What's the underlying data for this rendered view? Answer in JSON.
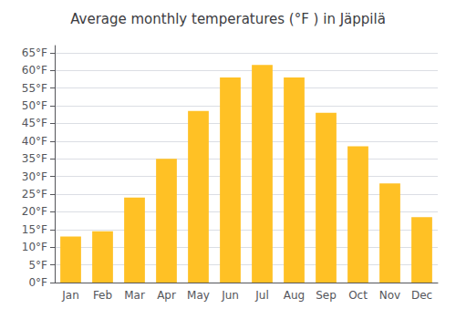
{
  "chart_data": {
    "type": "bar",
    "title": "Average monthly temperatures (°F ) in Jäppilä",
    "categories": [
      "Jan",
      "Feb",
      "Mar",
      "Apr",
      "May",
      "Jun",
      "Jul",
      "Aug",
      "Sep",
      "Oct",
      "Nov",
      "Dec"
    ],
    "values": [
      13,
      14.5,
      24,
      35,
      48.5,
      58,
      61.5,
      58,
      48,
      38.5,
      28,
      18.5
    ],
    "color": "#FFC125",
    "ylim": [
      0,
      67
    ],
    "yticks": [
      {
        "value": 0,
        "label": "0°F"
      },
      {
        "value": 5,
        "label": "5°F"
      },
      {
        "value": 10,
        "label": "10°F"
      },
      {
        "value": 15,
        "label": "15°F"
      },
      {
        "value": 20,
        "label": "20°F"
      },
      {
        "value": 25,
        "label": "25°F"
      },
      {
        "value": 30,
        "label": "30°F"
      },
      {
        "value": 35,
        "label": "35°F"
      },
      {
        "value": 40,
        "label": "40°F"
      },
      {
        "value": 45,
        "label": "45°F"
      },
      {
        "value": 50,
        "label": "50°F"
      },
      {
        "value": 55,
        "label": "55°F"
      },
      {
        "value": 60,
        "label": "60°F"
      },
      {
        "value": 65,
        "label": "65°F"
      }
    ],
    "grid": true
  }
}
